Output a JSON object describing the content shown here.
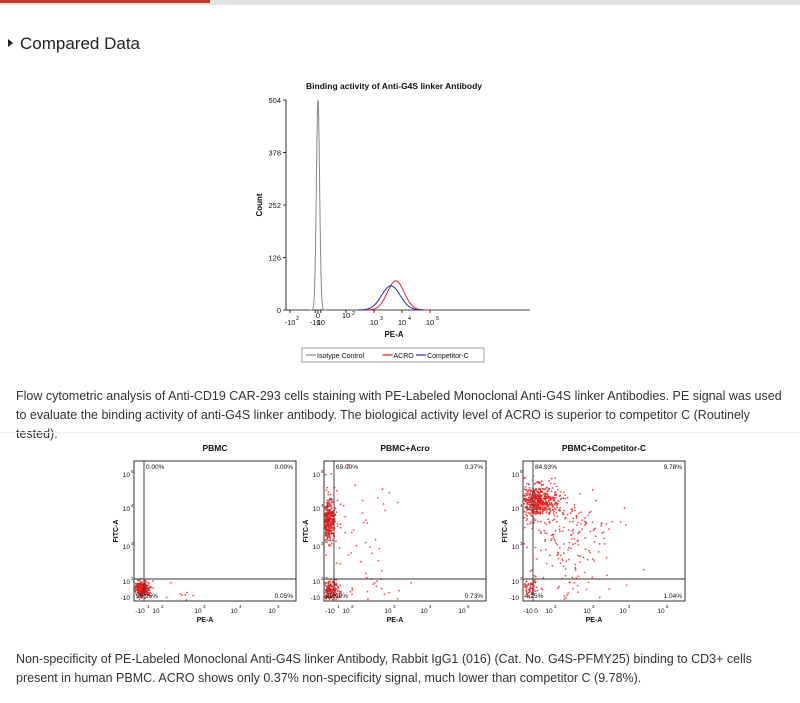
{
  "section": {
    "title": "Compared Data"
  },
  "captions": {
    "histogram": "Flow cytometric analysis of Anti-CD19 CAR-293 cells staining with PE-Labeled Monoclonal Anti-G4S linker Antibodies. PE signal was used to evaluate the binding activity of anti-G4S linker antibody. The biological activity level of ACRO is superior to competitor C (Routinely tested).",
    "pbmc": "Non-specificity of PE-Labeled Monoclonal Anti-G4S linker Antibody, Rabbit IgG1 (016) (Cat. No. G4S-PFMY25) binding to CD3+ cells present in human PBMC. ACRO shows only 0.37% non-specificity signal, much lower than competitor C (9.78%)."
  },
  "chart_data": [
    {
      "type": "line",
      "title": "Binding activity of Anti-G4S linker Antibody",
      "xlabel": "PE-A",
      "ylabel": "Count",
      "xscale": "biexponential",
      "yticks": [
        0,
        126,
        252,
        378,
        504
      ],
      "ylim": [
        0,
        504
      ],
      "legend": "bottom",
      "series": [
        {
          "name": "Isotype Control",
          "color": "#888888",
          "peak_x": 0,
          "peak_count": 504
        },
        {
          "name": "ACRO",
          "color": "#e02020",
          "peak_x": 6000,
          "peak_count": 70
        },
        {
          "name": "Competitor-C",
          "color": "#2233bb",
          "peak_x": 4000,
          "peak_count": 58
        }
      ]
    },
    {
      "type": "scatter",
      "title": "PBMC",
      "xlabel": "PE-A",
      "ylabel": "FITC-A",
      "quadrants": {
        "upper_left": "0.00%",
        "upper_right": "0.00%",
        "lower_left": "99.95%",
        "lower_right": "0.05%"
      }
    },
    {
      "type": "scatter",
      "title": "PBMC+Acro",
      "xlabel": "PE-A",
      "ylabel": "FITC-A",
      "quadrants": {
        "upper_left": "69.00%",
        "upper_right": "0.37%",
        "lower_left": "29.90%",
        "lower_right": "0.73%"
      }
    },
    {
      "type": "scatter",
      "title": "PBMC+Competitor-C",
      "xlabel": "PE-A",
      "ylabel": "FITC-A",
      "quadrants": {
        "upper_left": "84.93%",
        "upper_right": "9.78%",
        "lower_left": "4.25%",
        "lower_right": "1.04%"
      }
    }
  ]
}
